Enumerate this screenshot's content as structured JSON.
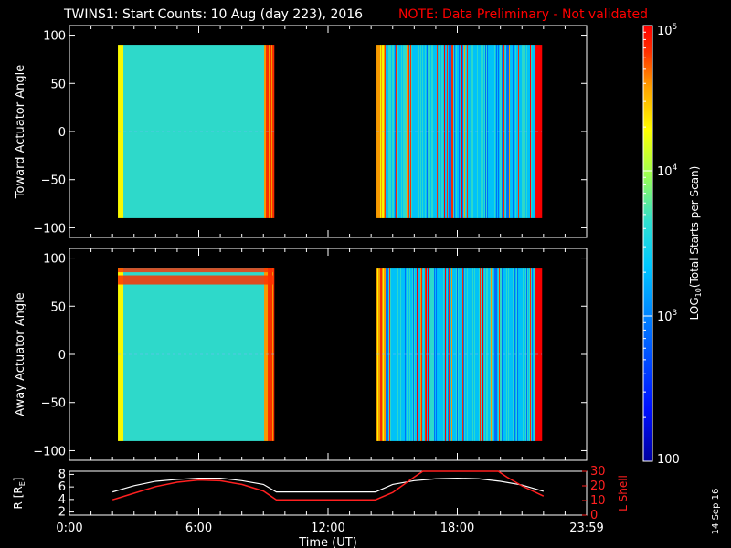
{
  "header": {
    "title": "TWINS1: Start Counts: 10 Aug (day 223), 2016",
    "note": "NOTE: Data Preliminary - Not validated"
  },
  "footer": {
    "date_stamp": "14 Sep 16"
  },
  "colors": {
    "background": "#000000",
    "text": "#ffffff",
    "note": "#ff0000",
    "l_shell": "#ff2020",
    "r_line": "#ffffff",
    "colormap": [
      "#0000a0",
      "#0010ff",
      "#0070ff",
      "#00c8ff",
      "#30e0d0",
      "#a0ff50",
      "#ffff00",
      "#ffa000",
      "#ff3000",
      "#ff0000"
    ]
  },
  "chart_data": [
    {
      "type": "heatmap",
      "ylabel": "Toward Actuator Angle",
      "ylim": [
        -110,
        110
      ],
      "y_ticks": [
        "100",
        "50",
        "0",
        "−50",
        "−100"
      ],
      "y_tick_values": [
        100,
        50,
        0,
        -50,
        -100
      ],
      "xlim_hours": [
        0,
        24
      ],
      "data_blocks": [
        {
          "t_start": "2:15",
          "t_end": "9:30",
          "angle_range": [
            -90,
            90
          ]
        },
        {
          "t_start": "14:15",
          "t_end": "21:55",
          "angle_range": [
            -90,
            90
          ]
        }
      ]
    },
    {
      "type": "heatmap",
      "ylabel": "Away Actuator Angle",
      "ylim": [
        -110,
        110
      ],
      "y_ticks": [
        "100",
        "50",
        "0",
        "−50",
        "−100"
      ],
      "y_tick_values": [
        100,
        50,
        0,
        -50,
        -100
      ],
      "xlim_hours": [
        0,
        24
      ],
      "data_blocks": [
        {
          "t_start": "2:15",
          "t_end": "9:30",
          "angle_range": [
            -90,
            90
          ]
        },
        {
          "t_start": "14:15",
          "t_end": "21:55",
          "angle_range": [
            -90,
            90
          ]
        }
      ]
    },
    {
      "type": "line",
      "ylabel_left": "R [R",
      "ylabel_left_sub": "E",
      "ylabel_left_end": "]",
      "ylabel_right": "L Shell",
      "y_left_ticks": [
        "8",
        "6",
        "4",
        "2"
      ],
      "y_left_tick_values": [
        8,
        6,
        4,
        2
      ],
      "ylim_left": [
        1.5,
        8.5
      ],
      "y_right_ticks": [
        "30",
        "20",
        "10",
        "0"
      ],
      "y_right_tick_values": [
        30,
        20,
        10,
        0
      ],
      "ylim_right": [
        0,
        30
      ],
      "xlabel": "Time (UT)",
      "x_ticks": [
        "0:00",
        "6:00",
        "12:00",
        "18:00",
        "23:59"
      ],
      "x_tick_values": [
        0,
        6,
        12,
        18,
        24
      ],
      "series": [
        {
          "key": "radius",
          "x": [
            2.0,
            3.0,
            4.0,
            5.0,
            6.0,
            7.0,
            8.0,
            9.0,
            9.6,
            14.2,
            15.0,
            16.0,
            17.0,
            18.0,
            19.0,
            20.0,
            21.0,
            22.0
          ],
          "y": [
            5.2,
            6.2,
            6.9,
            7.2,
            7.4,
            7.4,
            7.0,
            6.4,
            5.2,
            5.2,
            6.4,
            7.0,
            7.3,
            7.4,
            7.3,
            6.9,
            6.3,
            5.3
          ]
        },
        {
          "key": "l_shell",
          "x": [
            2.0,
            3.0,
            4.0,
            5.0,
            6.0,
            7.0,
            8.0,
            9.0,
            9.6,
            14.2,
            15.0,
            16.0,
            16.4,
            19.9,
            20.3,
            21.0,
            22.0
          ],
          "y": [
            10.5,
            15.0,
            19.5,
            22.5,
            24.0,
            23.5,
            21.0,
            16.5,
            10.5,
            10.5,
            15.5,
            26.0,
            30.0,
            30.0,
            26.0,
            20.0,
            13.0
          ]
        }
      ]
    }
  ],
  "colorbar": {
    "label": "LOG",
    "label_sub": "10",
    "label_rest": "(Total Starts per Scan)",
    "ticks": [
      {
        "base": "10",
        "exp": "5",
        "value": 100000
      },
      {
        "base": "10",
        "exp": "4",
        "value": 10000
      },
      {
        "base": "10",
        "exp": "3",
        "value": 1000
      },
      {
        "base": "100",
        "exp": "",
        "value": 100
      }
    ],
    "range": [
      100,
      100000
    ]
  }
}
